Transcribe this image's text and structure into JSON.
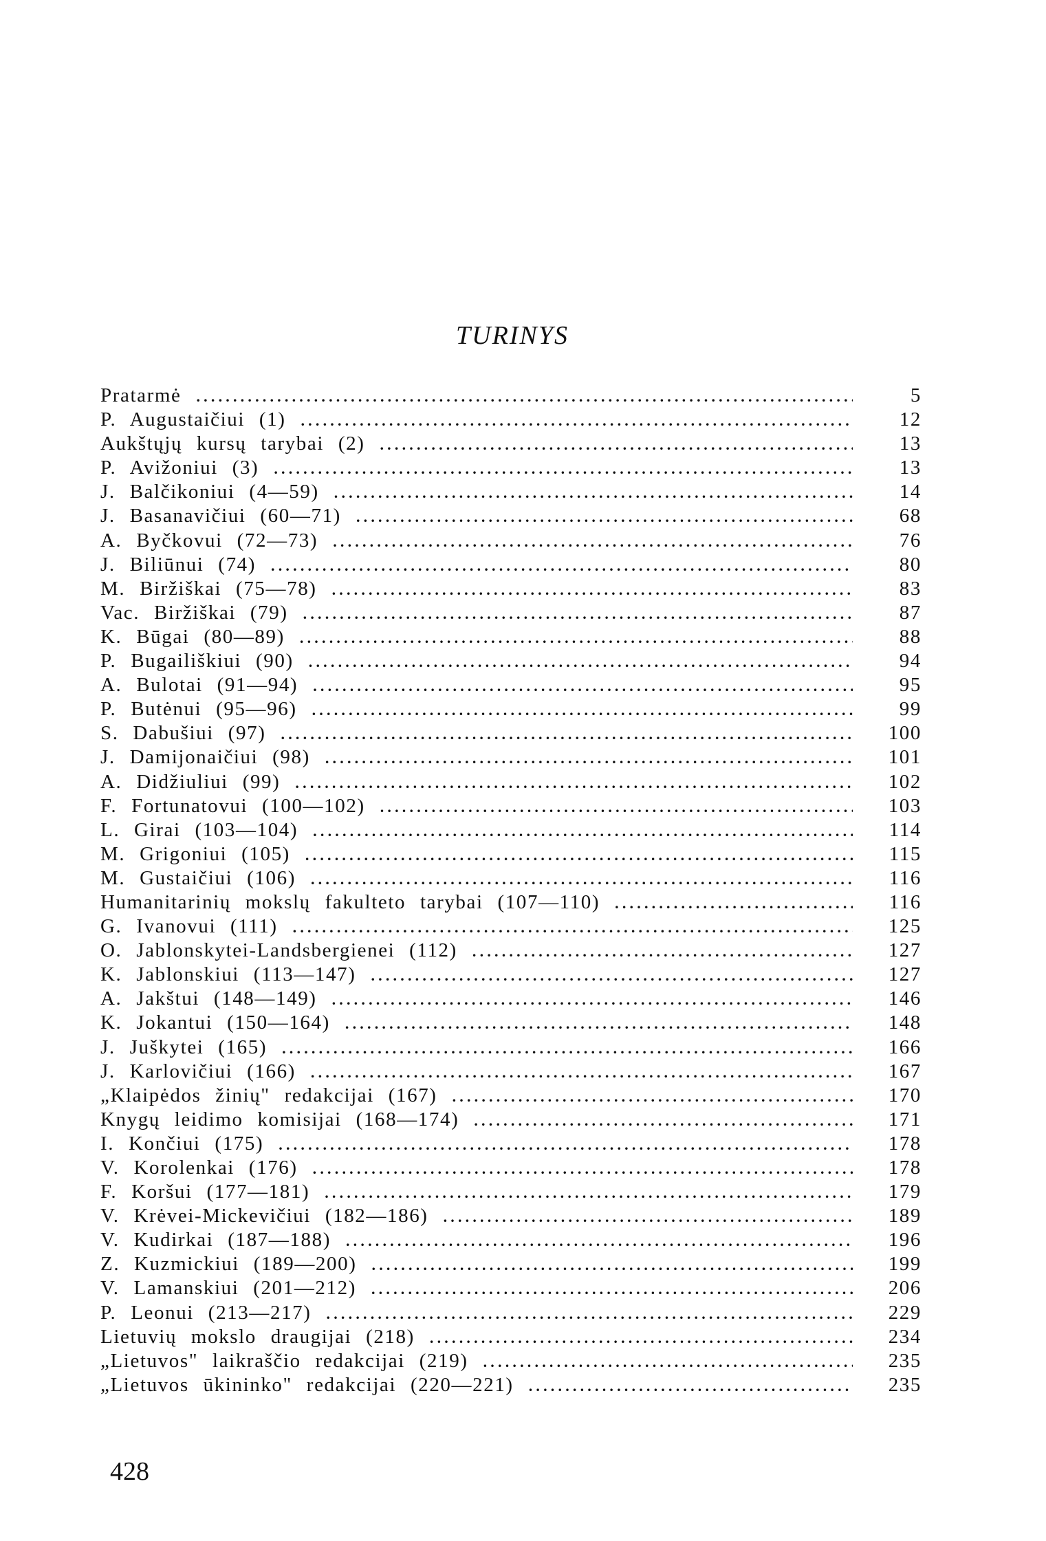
{
  "title": "TURINYS",
  "entries": [
    {
      "label": "Pratarmė",
      "page": "5"
    },
    {
      "label": "P. Augustaičiui (1)",
      "page": "12"
    },
    {
      "label": "Aukštųjų kursų tarybai (2)",
      "page": "13"
    },
    {
      "label": "P. Avižoniui (3)",
      "page": "13"
    },
    {
      "label": "J. Balčikoniui (4—59)",
      "page": "14"
    },
    {
      "label": "J. Basanavičiui (60—71)",
      "page": "68"
    },
    {
      "label": "A. Byčkovui (72—73)",
      "page": "76"
    },
    {
      "label": "J. Biliūnui (74)",
      "page": "80"
    },
    {
      "label": "M. Biržiškai (75—78)",
      "page": "83"
    },
    {
      "label": "Vac. Biržiškai (79)",
      "page": "87"
    },
    {
      "label": "K. Būgai (80—89)",
      "page": "88"
    },
    {
      "label": "P. Bugailiškiui (90)",
      "page": "94"
    },
    {
      "label": "A. Bulotai (91—94)",
      "page": "95"
    },
    {
      "label": "P. Butėnui (95—96)",
      "page": "99"
    },
    {
      "label": "S. Dabušiui (97)",
      "page": "100"
    },
    {
      "label": "J. Damijonaičiui (98)",
      "page": "101"
    },
    {
      "label": "A. Didžiuliui (99)",
      "page": "102"
    },
    {
      "label": "F. Fortunatovui (100—102)",
      "page": "103"
    },
    {
      "label": "L. Girai (103—104)",
      "page": "114"
    },
    {
      "label": "M. Grigoniui (105)",
      "page": "115"
    },
    {
      "label": "M. Gustaičiui (106)",
      "page": "116"
    },
    {
      "label": "Humanitarinių mokslų fakulteto tarybai (107—110)",
      "page": "116"
    },
    {
      "label": "G. Ivanovui (111)",
      "page": "125"
    },
    {
      "label": "O. Jablonskytei-Landsbergienei (112)",
      "page": "127"
    },
    {
      "label": "K. Jablonskiui (113—147)",
      "page": "127"
    },
    {
      "label": "A. Jakštui (148—149)",
      "page": "146"
    },
    {
      "label": "K. Jokantui (150—164)",
      "page": "148"
    },
    {
      "label": "J. Juškytei (165)",
      "page": "166"
    },
    {
      "label": "J. Karlovičiui (166)",
      "page": "167"
    },
    {
      "label": "„Klaipėdos žinių\" redakcijai (167)",
      "page": "170"
    },
    {
      "label": "Knygų leidimo komisijai (168—174)",
      "page": "171"
    },
    {
      "label": "I. Končiui (175)",
      "page": "178"
    },
    {
      "label": "V. Korolenkai (176)",
      "page": "178"
    },
    {
      "label": "F. Koršui (177—181)",
      "page": "179"
    },
    {
      "label": "V. Krėvei-Mickevičiui (182—186)",
      "page": "189"
    },
    {
      "label": "V. Kudirkai (187—188)",
      "page": "196"
    },
    {
      "label": "Z. Kuzmickiui (189—200)",
      "page": "199"
    },
    {
      "label": "V. Lamanskiui (201—212)",
      "page": "206"
    },
    {
      "label": "P. Leonui (213—217)",
      "page": "229"
    },
    {
      "label": "Lietuvių mokslo draugijai (218)",
      "page": "234"
    },
    {
      "label": "„Lietuvos\" laikraščio redakcijai (219)",
      "page": "235"
    },
    {
      "label": "„Lietuvos ūkininko\" redakcijai (220—221)",
      "page": "235"
    }
  ],
  "page_number": "428"
}
